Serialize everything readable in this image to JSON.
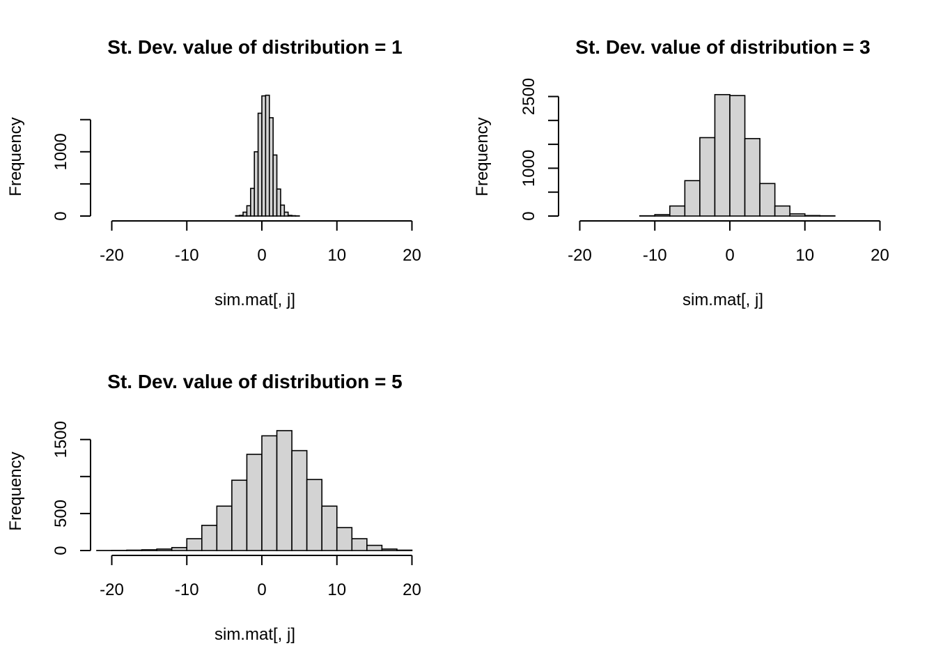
{
  "chart_data": [
    {
      "type": "bar",
      "title": "St. Dev. value of distribution =  1",
      "xlabel": "sim.mat[, j]",
      "ylabel": "Frequency",
      "xlim": [
        -20,
        20
      ],
      "xticks": [
        "-20",
        "-10",
        "0",
        "10",
        "20"
      ],
      "yticks": [
        "0",
        "1000"
      ],
      "ytick_values": [
        0,
        500,
        1000,
        1500
      ],
      "ytick_labeled": [
        true,
        false,
        true,
        false
      ],
      "bin_width": 0.5,
      "bin_start": -3.5,
      "values": [
        5,
        10,
        60,
        160,
        430,
        1000,
        1600,
        1870,
        1880,
        1530,
        950,
        420,
        170,
        60,
        10,
        5,
        2
      ]
    },
    {
      "type": "bar",
      "title": "St. Dev. value of distribution =  3",
      "xlabel": "sim.mat[, j]",
      "ylabel": "Frequency",
      "xlim": [
        -20,
        20
      ],
      "xticks": [
        "-20",
        "-10",
        "0",
        "10",
        "20"
      ],
      "yticks": [
        "0",
        "1000",
        "2500"
      ],
      "ytick_values": [
        0,
        500,
        1000,
        1500,
        2000,
        2500
      ],
      "ytick_labeled": [
        true,
        false,
        true,
        false,
        false,
        true
      ],
      "bin_width": 2,
      "bin_start": -12,
      "values": [
        5,
        30,
        210,
        740,
        1640,
        2540,
        2520,
        1620,
        680,
        210,
        45,
        10,
        5
      ]
    },
    {
      "type": "bar",
      "title": "St. Dev. value of distribution =  5",
      "xlabel": "sim.mat[, j]",
      "ylabel": "Frequency",
      "xlim": [
        -20,
        20
      ],
      "xticks": [
        "-20",
        "-10",
        "0",
        "10",
        "20"
      ],
      "yticks": [
        "0",
        "500",
        "1500"
      ],
      "ytick_values": [
        0,
        500,
        1000,
        1500
      ],
      "ytick_labeled": [
        true,
        true,
        false,
        true
      ],
      "bin_width": 2,
      "bin_start": -22,
      "values": [
        1,
        2,
        5,
        10,
        20,
        40,
        160,
        340,
        600,
        950,
        1300,
        1550,
        1620,
        1350,
        960,
        600,
        310,
        160,
        70,
        20,
        5
      ]
    }
  ]
}
